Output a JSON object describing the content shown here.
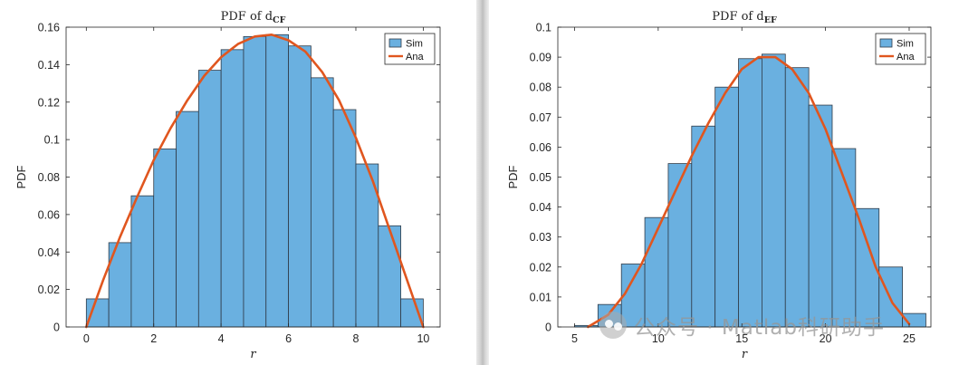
{
  "colors": {
    "bar_fill": "#6ab0e0",
    "bar_edge": "#2f3b48",
    "curve": "#e0561f",
    "axis": "#262626"
  },
  "legend": {
    "sim": "Sim",
    "ana": "Ana"
  },
  "watermark": {
    "text": "公众号 · Matlab科研助手"
  },
  "chart_data": [
    {
      "type": "bar",
      "title": "PDF of d",
      "title_subscript": "CF",
      "xlabel": "r",
      "ylabel": "PDF",
      "xlim": [
        -0.6,
        10.5
      ],
      "ylim": [
        0,
        0.16
      ],
      "xticks": [
        0,
        2,
        4,
        6,
        8,
        10
      ],
      "yticks": [
        0,
        0.02,
        0.04,
        0.06,
        0.08,
        0.1,
        0.12,
        0.14,
        0.16
      ],
      "ytick_labels": [
        "0",
        "0.02",
        "0.04",
        "0.06",
        "0.08",
        "0.1",
        "0.12",
        "0.14",
        "0.16"
      ],
      "bin_edges": [
        0,
        0.667,
        1.333,
        2,
        2.667,
        3.333,
        4,
        4.667,
        5.333,
        6,
        6.667,
        7.333,
        8,
        8.667,
        9.333,
        10
      ],
      "series": [
        {
          "name": "Sim",
          "kind": "histogram",
          "values": [
            0.015,
            0.045,
            0.07,
            0.095,
            0.115,
            0.137,
            0.148,
            0.155,
            0.156,
            0.15,
            0.133,
            0.116,
            0.087,
            0.054,
            0.015
          ]
        },
        {
          "name": "Ana",
          "kind": "line",
          "x": [
            0,
            0.5,
            1,
            1.5,
            2,
            2.5,
            3,
            3.5,
            4,
            4.5,
            5,
            5.5,
            6,
            6.5,
            7,
            7.5,
            8,
            8.5,
            9,
            9.5,
            10
          ],
          "y": [
            0,
            0.025,
            0.048,
            0.069,
            0.089,
            0.106,
            0.121,
            0.134,
            0.144,
            0.151,
            0.155,
            0.156,
            0.153,
            0.147,
            0.136,
            0.121,
            0.101,
            0.078,
            0.052,
            0.026,
            0
          ]
        }
      ],
      "legend_position": "top-right"
    },
    {
      "type": "bar",
      "title": "PDF of d",
      "title_subscript": "EF",
      "xlabel": "r",
      "ylabel": "PDF",
      "xlim": [
        4,
        26.3
      ],
      "ylim": [
        0,
        0.1
      ],
      "xticks": [
        5,
        10,
        15,
        20,
        25
      ],
      "yticks": [
        0,
        0.01,
        0.02,
        0.03,
        0.04,
        0.05,
        0.06,
        0.07,
        0.08,
        0.09,
        0.1
      ],
      "ytick_labels": [
        "0",
        "0.01",
        "0.02",
        "0.03",
        "0.04",
        "0.05",
        "0.06",
        "0.07",
        "0.08",
        "0.09",
        "0.1"
      ],
      "bin_edges": [
        5,
        6.4,
        7.8,
        9.2,
        10.6,
        12,
        13.4,
        14.8,
        16.2,
        17.6,
        19,
        20.4,
        21.8,
        23.2,
        24.6,
        26
      ],
      "series": [
        {
          "name": "Sim",
          "kind": "histogram",
          "values": [
            0.0005,
            0.0075,
            0.021,
            0.0365,
            0.0545,
            0.067,
            0.08,
            0.0895,
            0.091,
            0.0865,
            0.074,
            0.0595,
            0.0395,
            0.02,
            0.0045
          ]
        },
        {
          "name": "Ana",
          "kind": "line",
          "x": [
            5.8,
            7,
            8,
            9,
            10,
            11,
            12,
            13,
            14,
            15,
            16,
            17,
            18,
            19,
            20,
            21,
            22,
            23,
            24,
            25
          ],
          "y": [
            0,
            0.004,
            0.011,
            0.021,
            0.033,
            0.045,
            0.057,
            0.068,
            0.078,
            0.086,
            0.09,
            0.09,
            0.086,
            0.078,
            0.066,
            0.051,
            0.036,
            0.02,
            0.008,
            0.001
          ]
        }
      ],
      "legend_position": "top-right"
    }
  ]
}
